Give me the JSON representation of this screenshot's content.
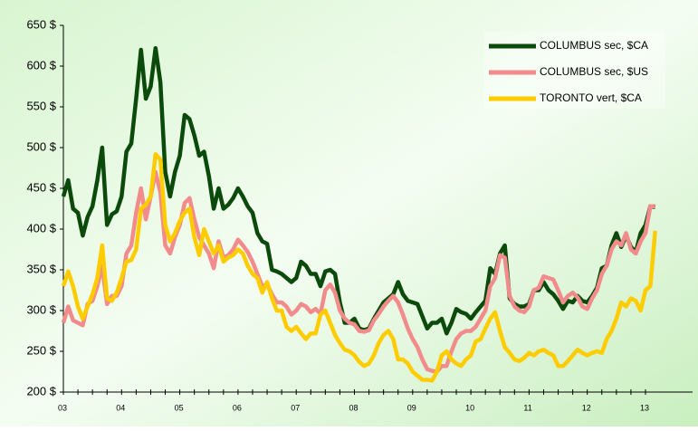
{
  "chart_data": {
    "type": "line",
    "categories": [
      "03",
      null,
      null,
      null,
      null,
      null,
      null,
      null,
      null,
      null,
      null,
      null,
      "04",
      null,
      null,
      null,
      null,
      null,
      null,
      null,
      null,
      null,
      null,
      null,
      "05",
      null,
      null,
      null,
      null,
      null,
      null,
      null,
      null,
      null,
      null,
      null,
      "06",
      null,
      null,
      null,
      null,
      null,
      null,
      null,
      null,
      null,
      null,
      null,
      "07",
      null,
      null,
      null,
      null,
      null,
      null,
      null,
      null,
      null,
      null,
      null,
      "08",
      null,
      null,
      null,
      null,
      null,
      null,
      null,
      null,
      null,
      null,
      null,
      "09",
      null,
      null,
      null,
      null,
      null,
      null,
      null,
      null,
      null,
      null,
      null,
      "10",
      null,
      null,
      null,
      null,
      null,
      null,
      null,
      null,
      null,
      null,
      null,
      "11",
      null,
      null,
      null,
      null,
      null,
      null,
      null,
      null,
      null,
      null,
      null,
      "12",
      null,
      null,
      null,
      null,
      null,
      null,
      null,
      null,
      null,
      null,
      null,
      "13",
      null,
      null
    ],
    "series": [
      {
        "name": "COLUMBUS sec, $CA",
        "color": "#0b4a0b",
        "values": [
          440,
          460,
          425,
          420,
          392,
          415,
          428,
          460,
          500,
          405,
          418,
          422,
          440,
          495,
          505,
          560,
          620,
          560,
          575,
          622,
          580,
          470,
          440,
          470,
          490,
          540,
          535,
          515,
          490,
          495,
          465,
          425,
          450,
          425,
          430,
          438,
          450,
          440,
          428,
          420,
          395,
          385,
          382,
          350,
          348,
          345,
          340,
          335,
          340,
          360,
          355,
          345,
          345,
          330,
          348,
          350,
          345,
          310,
          285,
          285,
          290,
          278,
          276,
          278,
          290,
          300,
          310,
          315,
          320,
          335,
          320,
          312,
          310,
          308,
          293,
          278,
          285,
          285,
          290,
          272,
          285,
          302,
          298,
          296,
          290,
          298,
          305,
          312,
          352,
          345,
          370,
          380,
          315,
          308,
          305,
          305,
          308,
          325,
          325,
          335,
          325,
          320,
          312,
          302,
          312,
          310,
          318,
          312,
          310,
          318,
          328,
          352,
          355,
          380,
          395,
          378,
          392,
          378,
          372,
          395,
          405,
          428,
          427
        ]
      },
      {
        "name": "COLUMBUS sec, $US",
        "color": "#f28b8b",
        "values": [
          285,
          305,
          288,
          285,
          282,
          308,
          312,
          330,
          355,
          308,
          318,
          318,
          330,
          370,
          380,
          420,
          450,
          412,
          440,
          470,
          445,
          380,
          370,
          390,
          405,
          432,
          438,
          412,
          390,
          380,
          370,
          352,
          385,
          365,
          368,
          375,
          387,
          380,
          372,
          360,
          345,
          330,
          332,
          320,
          310,
          310,
          305,
          295,
          300,
          308,
          305,
          298,
          302,
          296,
          325,
          332,
          322,
          300,
          290,
          285,
          283,
          275,
          274,
          276,
          288,
          296,
          305,
          312,
          318,
          310,
          295,
          278,
          265,
          255,
          240,
          228,
          226,
          225,
          232,
          232,
          250,
          265,
          272,
          275,
          275,
          280,
          290,
          300,
          330,
          340,
          368,
          365,
          318,
          305,
          300,
          298,
          305,
          325,
          328,
          342,
          340,
          338,
          325,
          310,
          318,
          322,
          316,
          305,
          302,
          315,
          325,
          345,
          355,
          375,
          385,
          380,
          395,
          375,
          370,
          385,
          395,
          428,
          428
        ]
      },
      {
        "name": "TORONTO vert, $CA",
        "color": "#ffcc00",
        "values": [
          330,
          348,
          330,
          305,
          290,
          305,
          320,
          340,
          380,
          315,
          312,
          322,
          340,
          360,
          362,
          375,
          425,
          430,
          440,
          492,
          485,
          405,
          385,
          395,
          410,
          420,
          425,
          390,
          368,
          400,
          385,
          370,
          380,
          360,
          365,
          368,
          375,
          370,
          355,
          345,
          340,
          322,
          335,
          315,
          300,
          300,
          280,
          275,
          280,
          272,
          265,
          272,
          272,
          295,
          300,
          285,
          270,
          260,
          252,
          250,
          245,
          237,
          232,
          235,
          245,
          260,
          270,
          275,
          265,
          240,
          240,
          235,
          225,
          220,
          215,
          215,
          214,
          225,
          245,
          250,
          240,
          235,
          232,
          240,
          245,
          262,
          265,
          278,
          290,
          298,
          275,
          255,
          248,
          240,
          238,
          242,
          248,
          245,
          250,
          252,
          248,
          245,
          232,
          232,
          238,
          245,
          252,
          248,
          245,
          248,
          250,
          248,
          265,
          275,
          290,
          310,
          305,
          315,
          312,
          300,
          325,
          330,
          398
        ]
      }
    ],
    "ylim": [
      200,
      650
    ],
    "yticks": [
      {
        "value": 200,
        "label": "200 $"
      },
      {
        "value": 250,
        "label": "250 $"
      },
      {
        "value": 300,
        "label": "300 $"
      },
      {
        "value": 350,
        "label": "350 $"
      },
      {
        "value": 400,
        "label": "400 $"
      },
      {
        "value": 450,
        "label": "450 $"
      },
      {
        "value": 500,
        "label": "500 $"
      },
      {
        "value": 550,
        "label": "550 $"
      },
      {
        "value": 600,
        "label": "600 $"
      },
      {
        "value": 650,
        "label": "650 $"
      }
    ],
    "legend": "upper right"
  }
}
